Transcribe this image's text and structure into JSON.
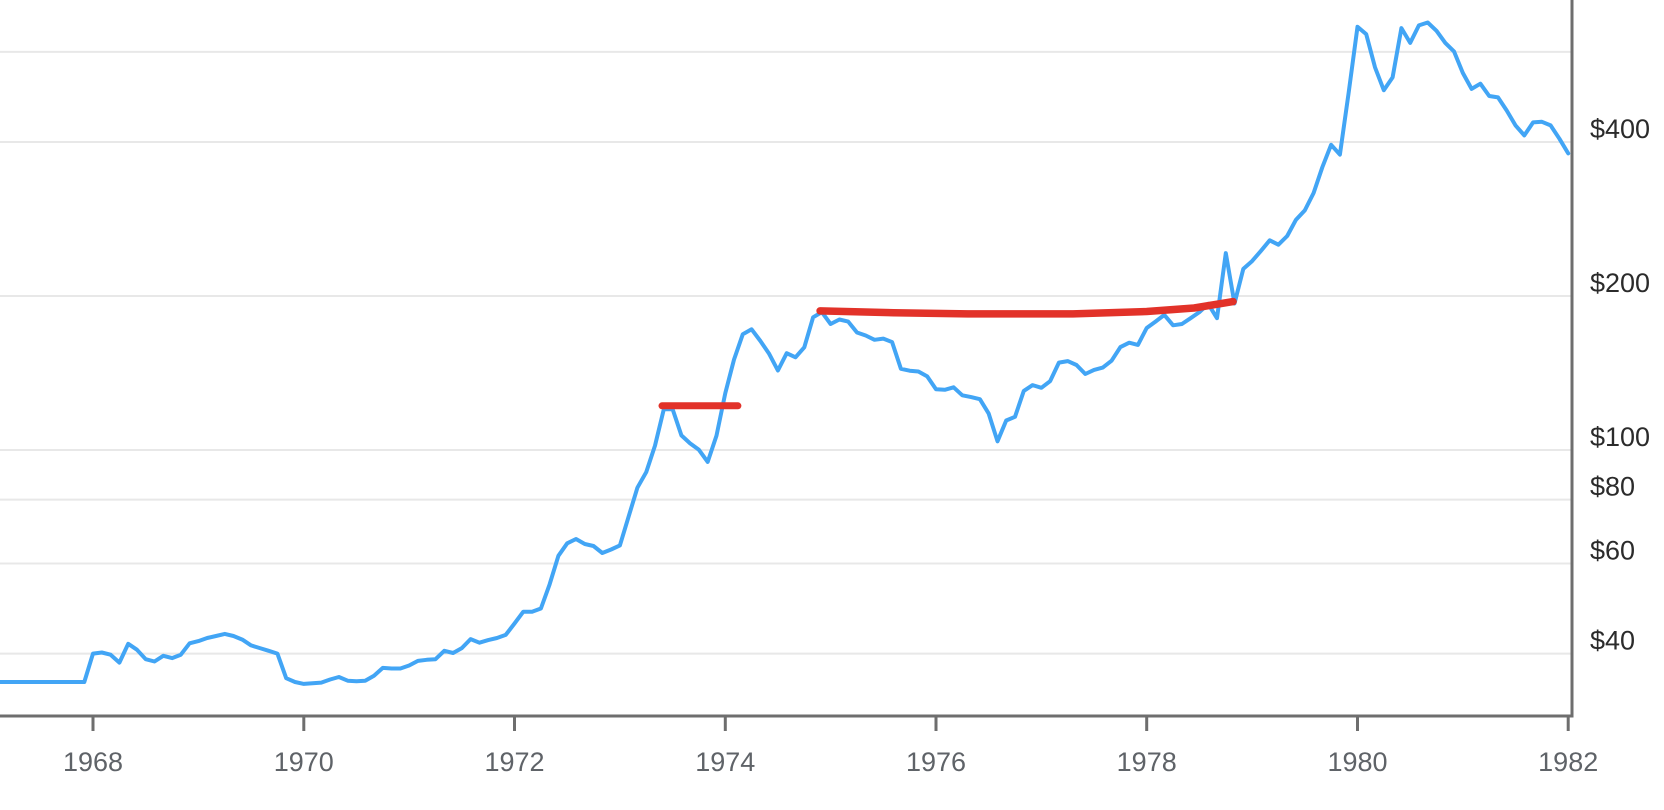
{
  "chart_data": {
    "type": "line",
    "title": "",
    "xlabel": "",
    "ylabel": "",
    "legend": "none",
    "grid": "horizontal-only",
    "x_axis": {
      "position": "bottom",
      "domain": [
        1967.117,
        1982.036
      ],
      "ticks": [
        1968,
        1970,
        1972,
        1974,
        1976,
        1978,
        1980,
        1982
      ],
      "tick_labels": [
        "1968",
        "1970",
        "1972",
        "1974",
        "1976",
        "1978",
        "1980",
        "1982"
      ]
    },
    "y_axis": {
      "position": "right",
      "scale": "log",
      "domain": [
        30.2,
        758
      ],
      "ticks": [
        {
          "label": "$40",
          "value": 40
        },
        {
          "label": "$60",
          "value": 60
        },
        {
          "label": "$80",
          "value": 80
        },
        {
          "label": "$100",
          "value": 100
        },
        {
          "label": "$200",
          "value": 200
        },
        {
          "label": "$400",
          "value": 400
        }
      ],
      "gridline_values": [
        40,
        60,
        80,
        100,
        200,
        400,
        600
      ]
    },
    "series": [
      {
        "name": "gold-price-usd-per-oz-monthly",
        "color": "#42a5f5",
        "start_year": 1967,
        "start_month": 1,
        "frequency": "monthly",
        "values": [
          35.2,
          35.2,
          35.2,
          35.2,
          35.2,
          35.2,
          35.2,
          35.2,
          35.2,
          35.2,
          35.2,
          35.2,
          40.0,
          40.2,
          39.8,
          38.4,
          41.8,
          40.7,
          39.0,
          38.6,
          39.6,
          39.2,
          39.8,
          41.9,
          42.3,
          42.9,
          43.3,
          43.7,
          43.3,
          42.6,
          41.5,
          41.0,
          40.5,
          40.0,
          35.8,
          35.2,
          34.9,
          35.0,
          35.1,
          35.6,
          36.0,
          35.4,
          35.3,
          35.4,
          36.2,
          37.5,
          37.4,
          37.4,
          37.9,
          38.7,
          38.9,
          39.0,
          40.5,
          40.1,
          41.0,
          42.7,
          42.0,
          42.5,
          42.9,
          43.5,
          45.8,
          48.3,
          48.3,
          49.0,
          54.6,
          62.1,
          65.7,
          67.0,
          65.5,
          64.9,
          62.9,
          63.9,
          65.1,
          74.2,
          84.4,
          90.5,
          102.0,
          120.1,
          120.2,
          106.8,
          103.0,
          100.1,
          94.8,
          106.7,
          129.2,
          150.2,
          168.4,
          172.2,
          163.3,
          154.1,
          143.0,
          154.6,
          151.8,
          158.8,
          181.7,
          186.0,
          176.3,
          179.9,
          178.2,
          169.7,
          167.4,
          164.2,
          165.1,
          162.5,
          144.1,
          142.9,
          142.4,
          139.3,
          131.5,
          131.1,
          132.6,
          127.9,
          126.9,
          125.7,
          117.8,
          104.0,
          114.2,
          116.1,
          130.5,
          133.9,
          132.3,
          136.3,
          148.2,
          149.2,
          146.6,
          140.8,
          143.4,
          144.9,
          149.5,
          158.9,
          162.1,
          160.5,
          173.2,
          178.2,
          183.7,
          175.3,
          176.3,
          181.0,
          186.0,
          193.0,
          181.0,
          242.6,
          193.4,
          226.0,
          234.0,
          245.0,
          257.0,
          252.0,
          262.0,
          282.0,
          294.0,
          318.0,
          357.0,
          395.0,
          378.0,
          500.0,
          672.0,
          650.0,
          560.0,
          505.0,
          535.0,
          668.0,
          625.0,
          676.0,
          685.0,
          660.0,
          625.0,
          601.0,
          546.0,
          508.0,
          520.0,
          492.0,
          489.0,
          461.0,
          431.0,
          412.0,
          437.0,
          438.0,
          431.0,
          406.0,
          380.0
        ]
      }
    ],
    "annotations": [
      {
        "name": "resistance-level-1973",
        "type": "level-stroke",
        "color": "#e23229",
        "width": 7,
        "points": [
          [
            1973.4,
            122
          ],
          [
            1974.12,
            122
          ]
        ]
      },
      {
        "name": "resistance-level-1975-1978",
        "type": "level-stroke",
        "color": "#e23229",
        "width": 7.5,
        "points": [
          [
            1974.9,
            187.0
          ],
          [
            1975.6,
            185.5
          ],
          [
            1976.3,
            184.5
          ],
          [
            1977.3,
            184.5
          ],
          [
            1978.0,
            186.5
          ],
          [
            1978.45,
            189.5
          ],
          [
            1978.82,
            195.0
          ]
        ]
      }
    ],
    "colors": {
      "line": "#42a5f5",
      "annotation": "#e23229",
      "gridline": "#e8e8e8",
      "axis": "#6e6e6e",
      "x_label": "#5f6368",
      "y_label": "#2b2b2b",
      "background": "#ffffff"
    }
  }
}
